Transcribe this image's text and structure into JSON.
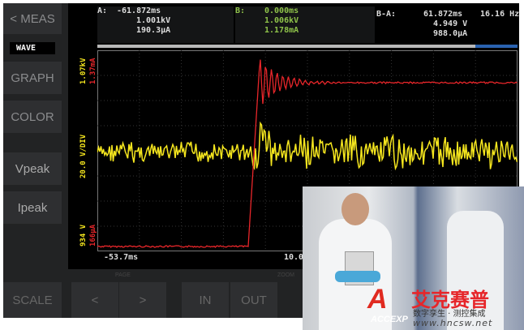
{
  "sidebar": {
    "meas": "< MEAS",
    "wave": "WAVE",
    "graph": "GRAPH",
    "color": "COLOR",
    "vpeak": "Vpeak",
    "ipeak": "Ipeak",
    "scale": "SCALE"
  },
  "readout": {
    "a": {
      "label": "A:",
      "time": "-61.872ms",
      "v": "1.001kV",
      "i": "190.3µA"
    },
    "b": {
      "label": "B:",
      "time": "0.000ms",
      "v": "1.006kV",
      "i": "1.178mA"
    },
    "ba": {
      "label": "B-A:",
      "time": "61.872ms",
      "v": "4.949 V",
      "i": "988.0µA",
      "freq": "16.16 Hz"
    }
  },
  "axis": {
    "v_top": "1.07kV",
    "i_top": "1.37mA",
    "scale": "20.0 V/DIV",
    "v_bot": "934 V",
    "i_bot": "166µA",
    "x_left": "-53.7ms",
    "x_right": "10.0"
  },
  "bottom": {
    "page_label": "PAGE",
    "zoom_label": "ZOOM",
    "prev": "<",
    "next": ">",
    "in": "IN",
    "out": "OUT"
  },
  "colors": {
    "voltage": "#f5e61e",
    "current": "#e8262a",
    "b_cursor": "#8fc34a"
  },
  "scroll_position": 0.9,
  "logo": {
    "brand_cn": "艾克赛普",
    "slogan": "数字孪生 · 测控集成",
    "url": "www.hncsw.net",
    "mark": "ACCEXP"
  }
}
